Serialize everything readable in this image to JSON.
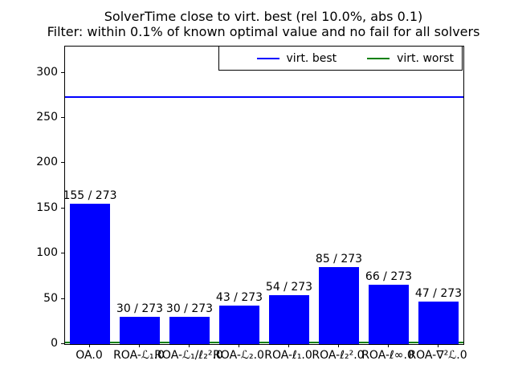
{
  "title": {
    "line1": "SolverTime close to virt. best (rel 10.0%, abs 0.1)",
    "line2": "Filter: within 0.1% of known optimal value and no fail for all solvers"
  },
  "legend": {
    "entries": [
      {
        "label": "virt. best",
        "color": "#0000ff"
      },
      {
        "label": "virt. worst",
        "color": "#008000"
      }
    ]
  },
  "chart_data": {
    "type": "bar",
    "title": "SolverTime close to virt. best (rel 10.0%, abs 0.1)\nFilter: within 0.1% of known optimal value and no fail for all solvers",
    "categories": [
      "OA.0",
      "ROA-ℒ₁.0",
      "ROA-ℒ₁/ℓ₂².0",
      "ROA-ℒ₂.0",
      "ROA-ℓ₁.0",
      "ROA-ℓ₂².0",
      "ROA-ℓ∞.0",
      "ROA-∇²ℒ.0"
    ],
    "values": [
      155,
      30,
      30,
      43,
      54,
      85,
      66,
      47
    ],
    "bar_labels": [
      "155 / 273",
      "30 / 273",
      "30 / 273",
      "43 / 273",
      "54 / 273",
      "85 / 273",
      "66 / 273",
      "47 / 273"
    ],
    "total_instances": 273,
    "bar_color": "#0000ff",
    "hlines": [
      {
        "name": "virt. best",
        "y": 273,
        "color": "#0000ff"
      },
      {
        "name": "virt. worst",
        "y": 0,
        "color": "#008000"
      }
    ],
    "xlabel": "",
    "ylabel": "",
    "yticks": [
      0,
      50,
      100,
      150,
      200,
      250,
      300
    ],
    "ylim": [
      0,
      329
    ],
    "grid": false,
    "legend_position": "upper right"
  }
}
